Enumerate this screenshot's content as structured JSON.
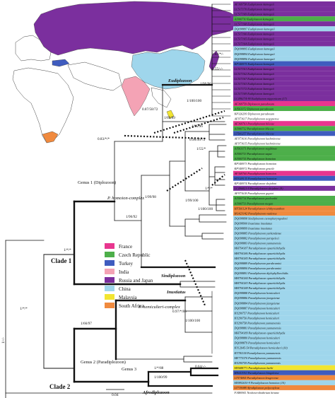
{
  "legend": [
    {
      "label": "France",
      "color": "#e8368f"
    },
    {
      "label": "Czech Republic",
      "color": "#4daf4a"
    },
    {
      "label": "Turkey",
      "color": "#3f5cbf"
    },
    {
      "label": "India",
      "color": "#f4a3b5"
    },
    {
      "label": "Russia and Japan",
      "color": "#7b2f9e"
    },
    {
      "label": "China",
      "color": "#9fd6ec"
    },
    {
      "label": "Malaysia",
      "color": "#f2e531"
    },
    {
      "label": "South Africa",
      "color": "#f08a3e"
    }
  ],
  "clades": {
    "clade1": "Clade 1",
    "clade2": "Clade 2"
  },
  "groups": {
    "eudiplozoon": "Eudiplozoon",
    "sindiplozoon": "Sindiplozoon",
    "inustiatus": "Inustiatus",
    "afrodiplozoon": "Afrodiplozoon",
    "genus1": "Genus 1 (Diplozoon)",
    "genus2": "Genus 2 (Paradiplozoon)",
    "genus3": "Genus 3",
    "homoion": "P. homoion-complex",
    "hemiculteri": "P. hemiculteri-complex"
  },
  "supports": [
    {
      "id": "s1",
      "text": "0.84/*/-"
    },
    {
      "id": "s2",
      "text": "0.55/-/-"
    },
    {
      "id": "s3",
      "text": "1/9*/96"
    },
    {
      "id": "s4",
      "text": "1/100/100"
    },
    {
      "id": "s5",
      "text": "0.87/58/72"
    },
    {
      "id": "s6",
      "text": "1/69/89"
    },
    {
      "id": "s7",
      "text": "1/95/96"
    },
    {
      "id": "s8",
      "text": "0.98/56/72"
    },
    {
      "id": "s9",
      "text": "1/55/*"
    },
    {
      "id": "s10",
      "text": "0.83/*/*"
    },
    {
      "id": "s11",
      "text": "1/99/98"
    },
    {
      "id": "s12",
      "text": "1/96/92"
    },
    {
      "id": "s13",
      "text": "1/*/*"
    },
    {
      "id": "s14",
      "text": "1/99/100"
    },
    {
      "id": "s15",
      "text": "1/100/100"
    },
    {
      "id": "s16",
      "text": "1/*/*"
    },
    {
      "id": "s17",
      "text": "1/*/*"
    },
    {
      "id": "s18",
      "text": "0.97/*/86"
    },
    {
      "id": "s19",
      "text": "1/100/100"
    },
    {
      "id": "s20",
      "text": "1/66/97"
    },
    {
      "id": "s21",
      "text": "1/*/88"
    },
    {
      "id": "s22",
      "text": "1/100/99"
    },
    {
      "id": "s23",
      "text": "0.64/-/-"
    },
    {
      "id": "s24",
      "text": "1/-/-"
    }
  ],
  "scale_label": "0.04",
  "tips": [
    {
      "label": "AF369758 Eudiplozoon kamegaii",
      "color": "#7b2f9e"
    },
    {
      "label": "LC517170 Eudiplozoon kamegaii",
      "color": "#7b2f9e"
    },
    {
      "label": "LC517169 Eudiplozoon kamegaii",
      "color": "#7b2f9e"
    },
    {
      "label": "AJ300710 Eudiplozoon kamegaii",
      "color": "#4daf4a"
    },
    {
      "label": "LC517168 Eudiplozoon kamegaii",
      "color": "#7b2f9e"
    },
    {
      "label": "DQ098897 Eudiplozoon kamegaii",
      "color": "#9fd6ec"
    },
    {
      "label": "LC517166 Eudiplozoon kamegaii",
      "color": "#7b2f9e"
    },
    {
      "label": "LC517165 Eudiplozoon kamegaii",
      "color": "#7b2f9e"
    },
    {
      "label": "LC517164 Eudiplozoon kamegaii",
      "color": "#7b2f9e"
    },
    {
      "label": "DQ098895 Eudiplozoon kamegaii",
      "color": "#9fd6ec"
    },
    {
      "label": "DQ098894 Eudiplozoon kamegaii",
      "color": "#9fd6ec"
    },
    {
      "label": "DQ098896 Eudiplozoon kamegaii",
      "color": "#9fd6ec"
    },
    {
      "label": "KP340975 Eudiplozoon kamegaii",
      "color": "#3f5cbf"
    },
    {
      "label": "LC517161 Eudiplozoon kamegaii",
      "color": "#7b2f9e"
    },
    {
      "label": "LC517162 Eudiplozoon kamegaii",
      "color": "#7b2f9e"
    },
    {
      "label": "LC517167 Eudiplozoon kamegaii",
      "color": "#7b2f9e"
    },
    {
      "label": "LC517163 Eudiplozoon kamegaii",
      "color": "#7b2f9e"
    },
    {
      "label": "LC517172 Eudiplozoon kamegaii",
      "color": "#7b2f9e"
    },
    {
      "label": "LC517169 Eudiplozoon kamegaii",
      "color": "#7b2f9e"
    },
    {
      "label": "LC496174-90 Eudiplozoon nipponicum (17)",
      "color": "#7b2f9e"
    },
    {
      "label": "AF369759 Diplozoon paradoxum",
      "color": "#e8368f"
    },
    {
      "label": "AJ563372 Diplozoon paradoxum",
      "color": "#4daf4a"
    },
    {
      "label": "KP326299 Diplozoon paradoxum",
      "color": "#ffffff"
    },
    {
      "label": "AF973617 Paradiplozoon aegyptense",
      "color": "#ffffff"
    },
    {
      "label": "AF369761 Paradiplozoon bliccae",
      "color": "#e8368f"
    },
    {
      "label": "AJ300712 Paradiplozoon bliccae",
      "color": "#4daf4a"
    },
    {
      "label": "LT560257 Paradiplozoon bliccae",
      "color": "#3f5cbf"
    },
    {
      "label": "AF973616 Paradiplozoon kashmirense",
      "color": "#ffffff"
    },
    {
      "label": "AF973615 Paradiplozoon kashmirense",
      "color": "#ffffff"
    },
    {
      "label": "AJ563371 Paradiplozoon nagibinae",
      "color": "#4daf4a"
    },
    {
      "label": "AJ300713 Paradiplozoon sapae",
      "color": "#4daf4a"
    },
    {
      "label": "AJ300715 Paradiplozoon homoion",
      "color": "#4daf4a"
    },
    {
      "label": "KP340973 Paradiplozoon homoion",
      "color": "#ffffff"
    },
    {
      "label": "KP340972 Paradiplozoon gracile",
      "color": "#ffffff"
    },
    {
      "label": "AF369760 Paradiplozoon homoion",
      "color": "#e8368f"
    },
    {
      "label": "MT028135 Paradiplozoon homoion",
      "color": "#3f5cbf"
    },
    {
      "label": "KP340974 Paradiplozoon skrjabini",
      "color": "#ffffff"
    },
    {
      "label": "LC496821-9 Paradiplozoon skrjabini (9)",
      "color": "#7b2f9e"
    },
    {
      "label": "AF973618 Paradiplozoon guptai",
      "color": "#ffffff"
    },
    {
      "label": "AJ300714 Paradiplozoon pavlovskii",
      "color": "#4daf4a"
    },
    {
      "label": "AJ300711 Paradiplozoon megan",
      "color": "#4daf4a"
    },
    {
      "label": "HF566124 Paradiplozoon ichthyoxanthon",
      "color": "#f08a3e"
    },
    {
      "label": "HG423142 Paradiplozoon vaalense",
      "color": "#f08a3e"
    },
    {
      "label": "DQ098898 Sindiplozoon ctenopharyngodoni",
      "color": "#9fd6ec"
    },
    {
      "label": "DQ098900 Inustiatus inustiatus",
      "color": "#9fd6ec"
    },
    {
      "label": "DQ098899 Inustiatus inustiatus",
      "color": "#9fd6ec"
    },
    {
      "label": "DQ098885 Paradiplozoon yarkandense",
      "color": "#9fd6ec"
    },
    {
      "label": "DQ098882 Paradiplozoon parapeleci",
      "color": "#9fd6ec"
    },
    {
      "label": "DQ098883 Paradiplozoon yunnanensis",
      "color": "#9fd6ec"
    },
    {
      "label": "MH794187 Paradiplozoon opsariichthydis",
      "color": "#9fd6ec"
    },
    {
      "label": "MH794186 Paradiplozoon opsariichthydis",
      "color": "#9fd6ec"
    },
    {
      "label": "MH794185 Paradiplozoon opsariichthydis",
      "color": "#9fd6ec"
    },
    {
      "label": "DQ098889 Paradiplozoon parabramisi",
      "color": "#9fd6ec"
    },
    {
      "label": "DQ098890 Paradiplozoon parabramisi",
      "color": "#9fd6ec"
    },
    {
      "label": "DQ098891 Paradiplozoon diplophyllorchidis",
      "color": "#9fd6ec"
    },
    {
      "label": "MH794184 Paradiplozoon opsariichthydis",
      "color": "#9fd6ec"
    },
    {
      "label": "MH794183 Paradiplozoon opsariichthydis",
      "color": "#9fd6ec"
    },
    {
      "label": "MH794188 Paradiplozoon opsariichthydis",
      "color": "#9fd6ec"
    },
    {
      "label": "DQ098888 Paradiplozoon hemiculteri",
      "color": "#9fd6ec"
    },
    {
      "label": "DQ098886 Paradiplozoon jiangxiense",
      "color": "#9fd6ec"
    },
    {
      "label": "DQ098884 Paradiplozoon jiangxiense",
      "color": "#9fd6ec"
    },
    {
      "label": "DQ098887 Paradiplozoon hemiculteri",
      "color": "#9fd6ec"
    },
    {
      "label": "KY290757 Paradiplozoon hemiculteri",
      "color": "#9fd6ec"
    },
    {
      "label": "KY290756 Paradiplozoon hemiculteri",
      "color": "#9fd6ec"
    },
    {
      "label": "KY290758 Paradiplozoon yunnanensis",
      "color": "#9fd6ec"
    },
    {
      "label": "DQ098881 Paradiplozoon yunnanensis",
      "color": "#9fd6ec"
    },
    {
      "label": "MH794189 Paradiplozoon opsariichthydis",
      "color": "#9fd6ec"
    },
    {
      "label": "DQ098880 Paradiplozoon hemiculteri",
      "color": "#9fd6ec"
    },
    {
      "label": "DQ098879 Paradiplozoon hemiculteri",
      "color": "#9fd6ec"
    },
    {
      "label": "KY12645-54 Paradiplozoon hemiculteri (10)",
      "color": "#9fd6ec"
    },
    {
      "label": "KT781100 Paradiplozoon yunnanensis",
      "color": "#9fd6ec"
    },
    {
      "label": "MF775370 Paradiplozoon yunnanensis",
      "color": "#9fd6ec"
    },
    {
      "label": "KY290759 Paradiplozoon yunnanensis",
      "color": "#9fd6ec"
    },
    {
      "label": "MN688771 Paradiplozoon barbi",
      "color": "#f2e531"
    },
    {
      "label": "HE653910 Paradiplozoon bingolense",
      "color": "#3f5cbf"
    },
    {
      "label": "LT574865 Paradiplozoon krugerense",
      "color": "#f08a3e"
    },
    {
      "label": "MN892630-9 Paradiplozoon homoion (10)",
      "color": "#9fd6ec"
    },
    {
      "label": "LT719088 Afrodiplozoon polycotyleus",
      "color": "#f08a3e"
    },
    {
      "label": "FJ480941 Neoheterobothrium hirame",
      "color": "#ffffff"
    }
  ]
}
